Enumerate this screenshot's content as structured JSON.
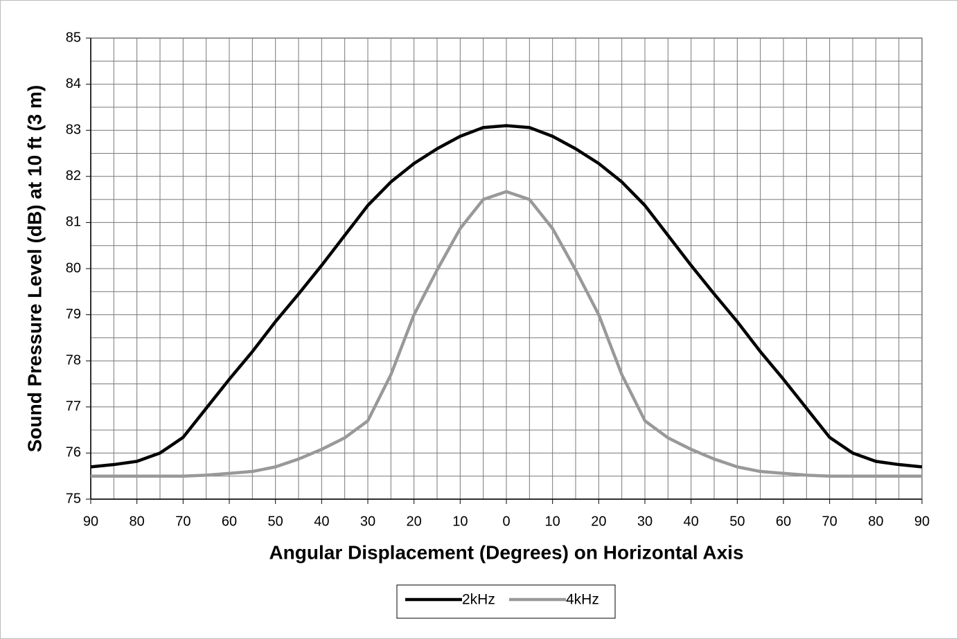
{
  "chart_data": {
    "type": "line",
    "xlabel": "Angular Displacement (Degrees) on Horizontal Axis",
    "ylabel": "Sound Pressure Level (dB) at 10 ft (3 m)",
    "x": [
      -90,
      -85,
      -80,
      -75,
      -70,
      -65,
      -60,
      -55,
      -50,
      -45,
      -40,
      -35,
      -30,
      -25,
      -20,
      -15,
      -10,
      -5,
      0,
      5,
      10,
      15,
      20,
      25,
      30,
      35,
      40,
      45,
      50,
      55,
      60,
      65,
      70,
      75,
      80,
      85,
      90
    ],
    "series": [
      {
        "name": "2kHz",
        "color": "#000000",
        "values": [
          75.7,
          75.75,
          75.82,
          76.0,
          76.34,
          76.97,
          77.6,
          78.2,
          78.85,
          79.45,
          80.07,
          80.72,
          81.37,
          81.88,
          82.28,
          82.6,
          82.87,
          83.06,
          83.1,
          83.06,
          82.87,
          82.6,
          82.28,
          81.88,
          81.37,
          80.72,
          80.07,
          79.45,
          78.85,
          78.2,
          77.6,
          76.97,
          76.34,
          76.0,
          75.82,
          75.75,
          75.7
        ]
      },
      {
        "name": "4kHz",
        "color": "#999999",
        "values": [
          75.5,
          75.5,
          75.5,
          75.5,
          75.5,
          75.52,
          75.56,
          75.6,
          75.7,
          75.87,
          76.08,
          76.33,
          76.7,
          77.7,
          79.0,
          79.97,
          80.87,
          81.5,
          81.67,
          81.5,
          80.87,
          79.97,
          79.0,
          77.7,
          76.7,
          76.33,
          76.08,
          75.87,
          75.7,
          75.6,
          75.56,
          75.52,
          75.5,
          75.5,
          75.5,
          75.5,
          75.5
        ]
      }
    ],
    "xlim": [
      -90,
      90
    ],
    "xticks": [
      {
        "value": -90,
        "label": "90"
      },
      {
        "value": -80,
        "label": "80"
      },
      {
        "value": -70,
        "label": "70"
      },
      {
        "value": -60,
        "label": "60"
      },
      {
        "value": -50,
        "label": "50"
      },
      {
        "value": -40,
        "label": "40"
      },
      {
        "value": -30,
        "label": "30"
      },
      {
        "value": -20,
        "label": "20"
      },
      {
        "value": -10,
        "label": "10"
      },
      0,
      10,
      20,
      30,
      40,
      50,
      60,
      70,
      80,
      90
    ],
    "xminorticks": [
      -85,
      -75,
      -65,
      -55,
      -45,
      -35,
      -25,
      -15,
      -5,
      5,
      15,
      25,
      35,
      45,
      55,
      65,
      75,
      85
    ],
    "ylim": [
      75,
      85
    ],
    "yticks": [
      75,
      76,
      77,
      78,
      79,
      80,
      81,
      82,
      83,
      84,
      85
    ],
    "yminorticks": [
      75.5,
      76.5,
      77.5,
      78.5,
      79.5,
      80.5,
      81.5,
      82.5,
      83.5,
      84.5
    ],
    "grid": true,
    "legend": "bottom"
  }
}
